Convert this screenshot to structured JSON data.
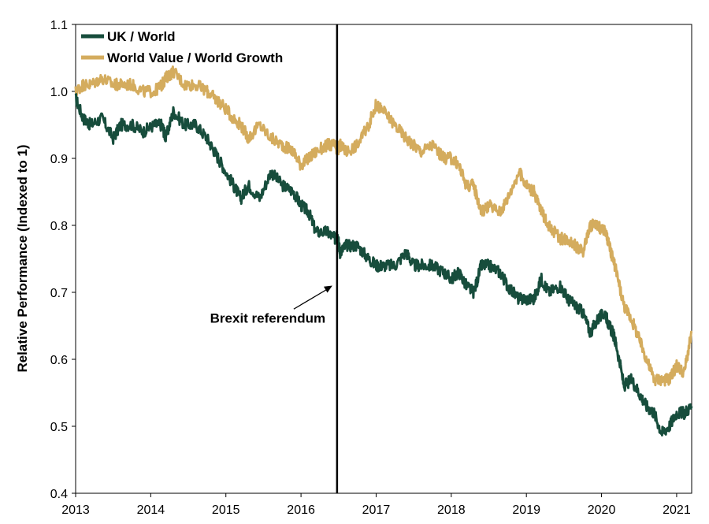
{
  "chart_data": {
    "type": "line",
    "title": "",
    "xlabel": "",
    "ylabel": "Relative Performance (Indexed to 1)",
    "xlim": [
      2013,
      2021.2
    ],
    "ylim": [
      0.4,
      1.1
    ],
    "x_ticks": [
      "2013",
      "2014",
      "2015",
      "2016",
      "2017",
      "2018",
      "2019",
      "2020",
      "2021"
    ],
    "y_ticks": [
      "0.4",
      "0.5",
      "0.6",
      "0.7",
      "0.8",
      "0.9",
      "1.0",
      "1.1"
    ],
    "grid": false,
    "legend_position": "top-left",
    "series": [
      {
        "name": "UK / World",
        "color": "#174d3c",
        "x": [
          2013.0,
          2013.1,
          2013.2,
          2013.35,
          2013.5,
          2013.6,
          2013.75,
          2013.9,
          2014.05,
          2014.15,
          2014.2,
          2014.3,
          2014.45,
          2014.6,
          2014.75,
          2014.85,
          2014.95,
          2015.1,
          2015.2,
          2015.3,
          2015.45,
          2015.6,
          2015.75,
          2015.9,
          2016.0,
          2016.1,
          2016.2,
          2016.35,
          2016.45,
          2016.48,
          2016.52,
          2016.6,
          2016.75,
          2016.9,
          2017.0,
          2017.1,
          2017.25,
          2017.4,
          2017.5,
          2017.6,
          2017.75,
          2017.9,
          2018.0,
          2018.1,
          2018.2,
          2018.3,
          2018.4,
          2018.5,
          2018.65,
          2018.75,
          2018.9,
          2019.0,
          2019.1,
          2019.2,
          2019.3,
          2019.45,
          2019.55,
          2019.65,
          2019.75,
          2019.85,
          2019.95,
          2020.05,
          2020.1,
          2020.15,
          2020.2,
          2020.3,
          2020.4,
          2020.5,
          2020.6,
          2020.7,
          2020.8,
          2020.9,
          2021.0,
          2021.1,
          2021.2
        ],
        "values": [
          0.99,
          0.96,
          0.95,
          0.96,
          0.93,
          0.95,
          0.95,
          0.94,
          0.95,
          0.95,
          0.93,
          0.97,
          0.95,
          0.95,
          0.93,
          0.91,
          0.89,
          0.86,
          0.84,
          0.86,
          0.84,
          0.88,
          0.86,
          0.85,
          0.83,
          0.82,
          0.79,
          0.79,
          0.78,
          0.79,
          0.76,
          0.77,
          0.77,
          0.75,
          0.74,
          0.74,
          0.74,
          0.76,
          0.74,
          0.74,
          0.74,
          0.73,
          0.72,
          0.73,
          0.71,
          0.7,
          0.74,
          0.74,
          0.73,
          0.71,
          0.69,
          0.69,
          0.69,
          0.72,
          0.7,
          0.71,
          0.69,
          0.68,
          0.67,
          0.64,
          0.66,
          0.67,
          0.65,
          0.64,
          0.62,
          0.56,
          0.57,
          0.55,
          0.53,
          0.52,
          0.49,
          0.5,
          0.52,
          0.52,
          0.53
        ]
      },
      {
        "name": "World Value / World Growth",
        "color": "#d4ac5e",
        "x": [
          2013.0,
          2013.1,
          2013.2,
          2013.35,
          2013.5,
          2013.6,
          2013.75,
          2013.9,
          2014.05,
          2014.15,
          2014.2,
          2014.3,
          2014.45,
          2014.6,
          2014.75,
          2014.85,
          2014.95,
          2015.1,
          2015.2,
          2015.3,
          2015.45,
          2015.6,
          2015.75,
          2015.9,
          2016.0,
          2016.1,
          2016.2,
          2016.35,
          2016.45,
          2016.48,
          2016.52,
          2016.6,
          2016.75,
          2016.9,
          2017.0,
          2017.1,
          2017.25,
          2017.4,
          2017.5,
          2017.6,
          2017.75,
          2017.9,
          2018.0,
          2018.1,
          2018.2,
          2018.3,
          2018.4,
          2018.5,
          2018.65,
          2018.75,
          2018.9,
          2019.0,
          2019.1,
          2019.2,
          2019.3,
          2019.45,
          2019.55,
          2019.65,
          2019.75,
          2019.85,
          2019.95,
          2020.05,
          2020.1,
          2020.15,
          2020.2,
          2020.3,
          2020.4,
          2020.5,
          2020.6,
          2020.7,
          2020.8,
          2020.9,
          2021.0,
          2021.1,
          2021.2
        ],
        "values": [
          1.0,
          1.01,
          1.01,
          1.02,
          1.01,
          1.01,
          1.01,
          1.0,
          1.0,
          1.01,
          1.02,
          1.03,
          1.01,
          1.01,
          1.0,
          0.99,
          0.98,
          0.96,
          0.95,
          0.93,
          0.95,
          0.93,
          0.92,
          0.91,
          0.89,
          0.9,
          0.91,
          0.92,
          0.92,
          0.91,
          0.92,
          0.91,
          0.92,
          0.95,
          0.98,
          0.97,
          0.95,
          0.93,
          0.92,
          0.91,
          0.92,
          0.9,
          0.9,
          0.89,
          0.86,
          0.86,
          0.82,
          0.83,
          0.82,
          0.84,
          0.88,
          0.86,
          0.85,
          0.82,
          0.8,
          0.78,
          0.78,
          0.77,
          0.76,
          0.8,
          0.8,
          0.79,
          0.77,
          0.75,
          0.73,
          0.68,
          0.66,
          0.63,
          0.6,
          0.57,
          0.57,
          0.57,
          0.59,
          0.58,
          0.64
        ]
      }
    ],
    "annotations": [
      {
        "text": "Brexit referendum",
        "x": 2016.48
      }
    ]
  }
}
